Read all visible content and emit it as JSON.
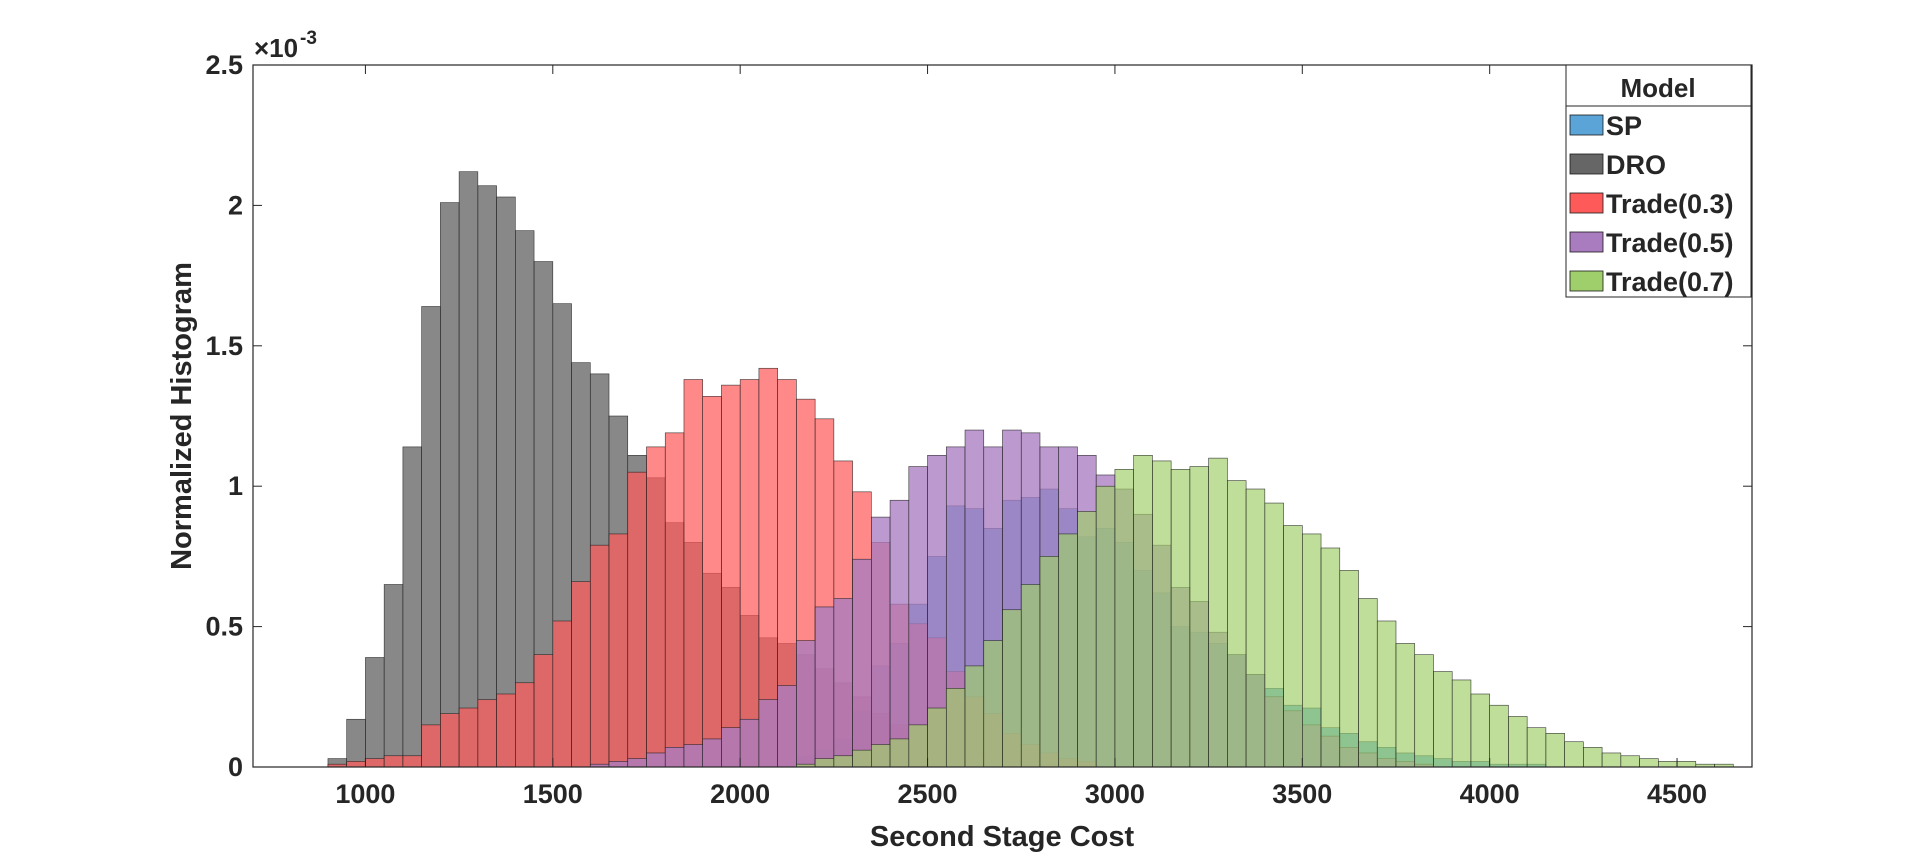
{
  "chart_data": {
    "type": "bar",
    "subtype": "overlapping-histogram",
    "title": "",
    "xlabel": "Second Stage Cost",
    "ylabel": "Normalized Histogram",
    "y_exponent_label": "×10",
    "y_exponent_power": "-3",
    "xlim": [
      700,
      4700
    ],
    "ylim": [
      0,
      2.5
    ],
    "xticks": [
      1000,
      1500,
      2000,
      2500,
      3000,
      3500,
      4000,
      4500
    ],
    "yticks": [
      0,
      0.5,
      1,
      1.5,
      2,
      2.5
    ],
    "ytick_labels": [
      "0",
      "0.5",
      "1",
      "1.5",
      "2",
      "2.5"
    ],
    "grid": false,
    "bin_width": 50,
    "legend": {
      "title": "Model",
      "position": "top-right",
      "entries": [
        {
          "label": "SP",
          "color": "#5aa4d8"
        },
        {
          "label": "DRO",
          "color": "#666666"
        },
        {
          "label": "Trade(0.3)",
          "color": "#ff5a5a"
        },
        {
          "label": "Trade(0.5)",
          "color": "#a97cc0"
        },
        {
          "label": "Trade(0.7)",
          "color": "#9fcf6a"
        }
      ]
    },
    "series": [
      {
        "name": "SP",
        "color": "#5aa4d8",
        "opacity": 0.9,
        "bins": [
          [
            2150,
            0.04
          ],
          [
            2200,
            0.06
          ],
          [
            2250,
            0.1
          ],
          [
            2300,
            0.2
          ],
          [
            2350,
            0.36
          ],
          [
            2400,
            0.44
          ],
          [
            2450,
            0.58
          ],
          [
            2500,
            0.75
          ],
          [
            2550,
            0.93
          ],
          [
            2600,
            0.92
          ],
          [
            2650,
            0.85
          ],
          [
            2700,
            0.95
          ],
          [
            2750,
            0.96
          ],
          [
            2800,
            0.99
          ],
          [
            2850,
            0.92
          ],
          [
            2900,
            0.82
          ],
          [
            2950,
            0.85
          ],
          [
            3000,
            0.8
          ],
          [
            3050,
            0.7
          ],
          [
            3100,
            0.62
          ],
          [
            3150,
            0.5
          ],
          [
            3200,
            0.48
          ],
          [
            3250,
            0.44
          ],
          [
            3300,
            0.4
          ],
          [
            3350,
            0.33
          ],
          [
            3400,
            0.28
          ],
          [
            3450,
            0.22
          ],
          [
            3500,
            0.21
          ],
          [
            3550,
            0.14
          ],
          [
            3600,
            0.12
          ],
          [
            3650,
            0.09
          ],
          [
            3700,
            0.07
          ],
          [
            3750,
            0.05
          ],
          [
            3800,
            0.04
          ],
          [
            3850,
            0.03
          ],
          [
            3900,
            0.02
          ],
          [
            3950,
            0.02
          ],
          [
            4000,
            0.01
          ],
          [
            4050,
            0.01
          ],
          [
            4100,
            0.01
          ]
        ]
      },
      {
        "name": "DRO",
        "color": "#666666",
        "opacity": 0.78,
        "bins": [
          [
            900,
            0.03
          ],
          [
            950,
            0.17
          ],
          [
            1000,
            0.39
          ],
          [
            1050,
            0.65
          ],
          [
            1100,
            1.14
          ],
          [
            1150,
            1.64
          ],
          [
            1200,
            2.01
          ],
          [
            1250,
            2.12
          ],
          [
            1300,
            2.07
          ],
          [
            1350,
            2.03
          ],
          [
            1400,
            1.91
          ],
          [
            1450,
            1.8
          ],
          [
            1500,
            1.65
          ],
          [
            1550,
            1.44
          ],
          [
            1600,
            1.4
          ],
          [
            1650,
            1.25
          ],
          [
            1700,
            1.11
          ],
          [
            1750,
            1.03
          ],
          [
            1800,
            0.87
          ],
          [
            1850,
            0.8
          ],
          [
            1900,
            0.69
          ],
          [
            1950,
            0.64
          ],
          [
            2000,
            0.54
          ],
          [
            2050,
            0.46
          ],
          [
            2100,
            0.44
          ],
          [
            2150,
            0.4
          ],
          [
            2200,
            0.35
          ],
          [
            2250,
            0.3
          ],
          [
            2300,
            0.25
          ],
          [
            2350,
            0.19
          ],
          [
            2400,
            0.15
          ],
          [
            2450,
            0.1
          ],
          [
            2500,
            0.09
          ],
          [
            2550,
            0.06
          ],
          [
            2600,
            0.05
          ],
          [
            2650,
            0.04
          ],
          [
            2700,
            0.02
          ],
          [
            2750,
            0.02
          ],
          [
            2800,
            0.01
          ]
        ]
      },
      {
        "name": "Trade(0.3)",
        "color": "#ff5a5a",
        "opacity": 0.72,
        "bins": [
          [
            900,
            0.01
          ],
          [
            950,
            0.02
          ],
          [
            1000,
            0.03
          ],
          [
            1050,
            0.04
          ],
          [
            1100,
            0.04
          ],
          [
            1150,
            0.15
          ],
          [
            1200,
            0.19
          ],
          [
            1250,
            0.21
          ],
          [
            1300,
            0.24
          ],
          [
            1350,
            0.26
          ],
          [
            1400,
            0.3
          ],
          [
            1450,
            0.4
          ],
          [
            1500,
            0.52
          ],
          [
            1550,
            0.66
          ],
          [
            1600,
            0.79
          ],
          [
            1650,
            0.83
          ],
          [
            1700,
            1.05
          ],
          [
            1750,
            1.14
          ],
          [
            1800,
            1.19
          ],
          [
            1850,
            1.38
          ],
          [
            1900,
            1.32
          ],
          [
            1950,
            1.36
          ],
          [
            2000,
            1.38
          ],
          [
            2050,
            1.42
          ],
          [
            2100,
            1.38
          ],
          [
            2150,
            1.31
          ],
          [
            2200,
            1.24
          ],
          [
            2250,
            1.09
          ],
          [
            2300,
            0.98
          ],
          [
            2350,
            0.8
          ],
          [
            2400,
            0.58
          ],
          [
            2450,
            0.51
          ],
          [
            2500,
            0.46
          ],
          [
            2550,
            0.34
          ],
          [
            2600,
            0.25
          ],
          [
            2650,
            0.19
          ],
          [
            2700,
            0.12
          ],
          [
            2750,
            0.08
          ],
          [
            2800,
            0.05
          ],
          [
            2850,
            0.03
          ],
          [
            2900,
            0.02
          ]
        ]
      },
      {
        "name": "Trade(0.5)",
        "color": "#a97cc0",
        "opacity": 0.78,
        "bins": [
          [
            1600,
            0.01
          ],
          [
            1650,
            0.02
          ],
          [
            1700,
            0.03
          ],
          [
            1750,
            0.05
          ],
          [
            1800,
            0.07
          ],
          [
            1850,
            0.08
          ],
          [
            1900,
            0.1
          ],
          [
            1950,
            0.14
          ],
          [
            2000,
            0.17
          ],
          [
            2050,
            0.24
          ],
          [
            2100,
            0.29
          ],
          [
            2150,
            0.45
          ],
          [
            2200,
            0.57
          ],
          [
            2250,
            0.6
          ],
          [
            2300,
            0.74
          ],
          [
            2350,
            0.89
          ],
          [
            2400,
            0.95
          ],
          [
            2450,
            1.07
          ],
          [
            2500,
            1.11
          ],
          [
            2550,
            1.14
          ],
          [
            2600,
            1.2
          ],
          [
            2650,
            1.14
          ],
          [
            2700,
            1.2
          ],
          [
            2750,
            1.19
          ],
          [
            2800,
            1.14
          ],
          [
            2850,
            1.14
          ],
          [
            2900,
            1.11
          ],
          [
            2950,
            1.04
          ],
          [
            3000,
            0.99
          ],
          [
            3050,
            0.9
          ],
          [
            3100,
            0.79
          ],
          [
            3150,
            0.64
          ],
          [
            3200,
            0.59
          ],
          [
            3250,
            0.48
          ],
          [
            3300,
            0.4
          ],
          [
            3350,
            0.33
          ],
          [
            3400,
            0.25
          ],
          [
            3450,
            0.2
          ],
          [
            3500,
            0.15
          ],
          [
            3550,
            0.11
          ],
          [
            3600,
            0.07
          ],
          [
            3650,
            0.05
          ],
          [
            3700,
            0.03
          ],
          [
            3750,
            0.02
          ],
          [
            3800,
            0.01
          ]
        ]
      },
      {
        "name": "Trade(0.7)",
        "color": "#9fcf6a",
        "opacity": 0.68,
        "bins": [
          [
            2150,
            0.01
          ],
          [
            2200,
            0.03
          ],
          [
            2250,
            0.04
          ],
          [
            2300,
            0.06
          ],
          [
            2350,
            0.08
          ],
          [
            2400,
            0.1
          ],
          [
            2450,
            0.15
          ],
          [
            2500,
            0.21
          ],
          [
            2550,
            0.28
          ],
          [
            2600,
            0.36
          ],
          [
            2650,
            0.45
          ],
          [
            2700,
            0.56
          ],
          [
            2750,
            0.65
          ],
          [
            2800,
            0.75
          ],
          [
            2850,
            0.83
          ],
          [
            2900,
            0.91
          ],
          [
            2950,
            1.0
          ],
          [
            3000,
            1.06
          ],
          [
            3050,
            1.11
          ],
          [
            3100,
            1.09
          ],
          [
            3150,
            1.06
          ],
          [
            3200,
            1.07
          ],
          [
            3250,
            1.1
          ],
          [
            3300,
            1.02
          ],
          [
            3350,
            0.99
          ],
          [
            3400,
            0.94
          ],
          [
            3450,
            0.86
          ],
          [
            3500,
            0.83
          ],
          [
            3550,
            0.78
          ],
          [
            3600,
            0.7
          ],
          [
            3650,
            0.6
          ],
          [
            3700,
            0.52
          ],
          [
            3750,
            0.44
          ],
          [
            3800,
            0.4
          ],
          [
            3850,
            0.34
          ],
          [
            3900,
            0.31
          ],
          [
            3950,
            0.26
          ],
          [
            4000,
            0.22
          ],
          [
            4050,
            0.18
          ],
          [
            4100,
            0.14
          ],
          [
            4150,
            0.12
          ],
          [
            4200,
            0.09
          ],
          [
            4250,
            0.07
          ],
          [
            4300,
            0.05
          ],
          [
            4350,
            0.04
          ],
          [
            4400,
            0.03
          ],
          [
            4450,
            0.02
          ],
          [
            4500,
            0.02
          ],
          [
            4550,
            0.01
          ],
          [
            4600,
            0.01
          ]
        ]
      }
    ]
  }
}
